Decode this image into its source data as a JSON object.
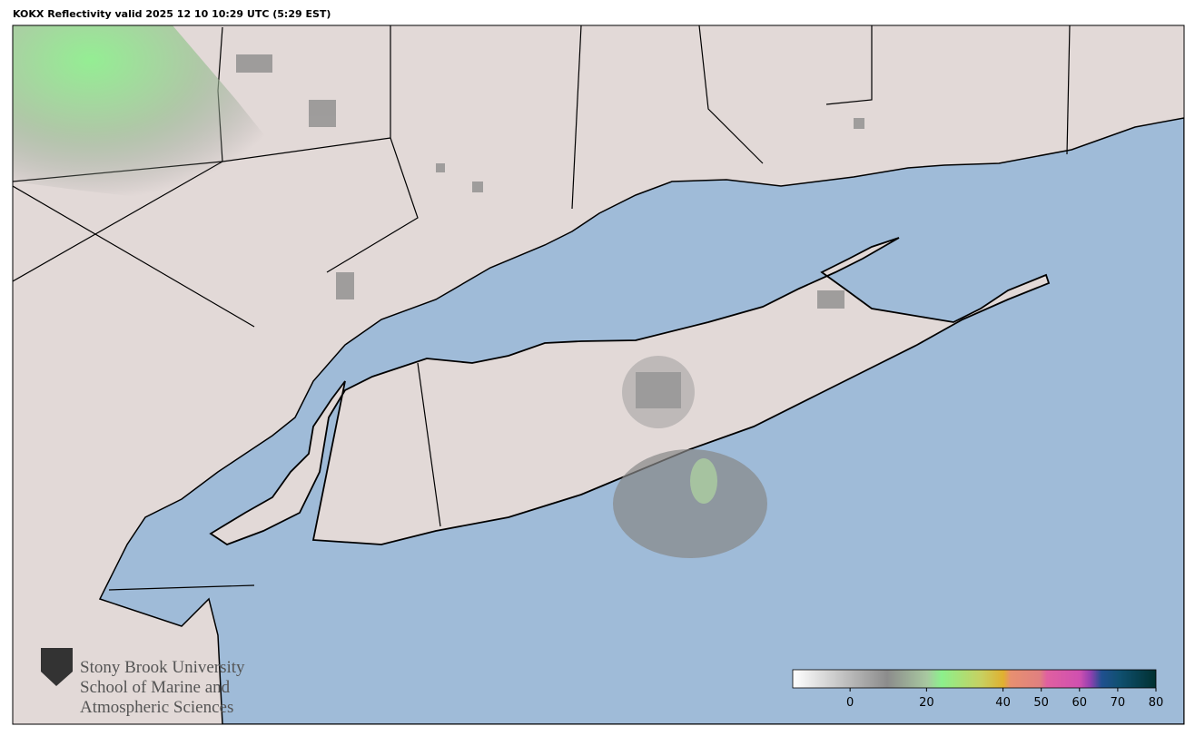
{
  "title": "KOKX Reflectivity valid 2025 12 10 10:29 UTC (5:29 EST)",
  "logo": {
    "lines": [
      "Stony Brook University",
      "School of Marine and",
      "Atmospheric Sciences"
    ]
  },
  "colorbar": {
    "range": [
      -15,
      80
    ],
    "ticks": [
      0,
      20,
      40,
      50,
      60,
      70,
      80
    ]
  }
}
